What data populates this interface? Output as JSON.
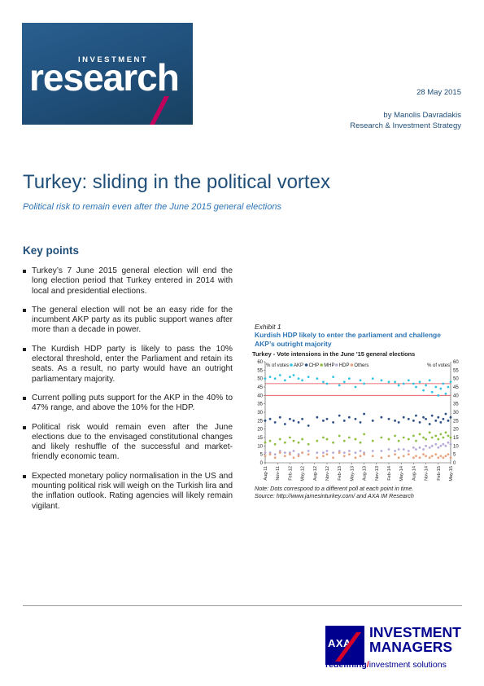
{
  "header": {
    "logo_small": "INVESTMENT",
    "logo_big": "research",
    "date": "28 May 2015",
    "author": "by Manolis Davradakis",
    "department": "Research & Investment Strategy"
  },
  "title": "Turkey: sliding in the political vortex",
  "subtitle": "Political risk to remain even after the June 2015 general elections",
  "key_points": {
    "heading": "Key points",
    "items": [
      "Turkey’s 7 June 2015 general election will end the long election period that Turkey entered in 2014 with local and presidential elections.",
      "The general election will not be an easy ride for the incumbent AKP party as its public support wanes after more than a decade in power.",
      "The Kurdish HDP party is likely to pass the 10% electoral threshold, enter the Parliament and retain its seats. As a result, no party would have an outright parliamentary majority.",
      "Current polling puts support for the AKP in the 40% to 47% range, and above the 10% for the HDP.",
      "Political risk would remain even after the June elections due to the envisaged constitutional changes and likely reshuffle of the successful and market-friendly economic team.",
      "Expected monetary policy normalisation in the US and mounting political risk will weigh on the Turkish lira and the inflation outlook. Rating agencies will likely remain vigilant."
    ]
  },
  "exhibit": {
    "label": "Exhibit 1",
    "title": "Kurdish HDP likely to enter the parliament and challenge AKP’s outright majority",
    "note": "Note: Dots correspond to a different poll at each point in time.",
    "source": "Source: http://www.jamesinturkey.com/ and AXA IM Research"
  },
  "chart_data": {
    "type": "scatter",
    "title": "Turkey - Vote intensions in the June '15  general elections",
    "ylabel_left": "% of votes",
    "ylabel_right": "% of votes",
    "ylim": [
      0,
      60
    ],
    "yticks": [
      0,
      5,
      10,
      15,
      20,
      25,
      30,
      35,
      40,
      45,
      50,
      55,
      60
    ],
    "x_ticks": [
      "Aug-11",
      "Nov-11",
      "Feb-12",
      "May-12",
      "Aug-12",
      "Nov-12",
      "Feb-13",
      "May-13",
      "Aug-13",
      "Nov-13",
      "Feb-14",
      "May-14",
      "Aug-14",
      "Nov-14",
      "Feb-15",
      "May-15"
    ],
    "reference_lines": [
      40,
      47
    ],
    "reference_color": "#e8474a",
    "series": [
      {
        "name": "AKP",
        "color": "#33c3e3",
        "x": [
          0,
          0.4,
          0.8,
          1.2,
          1.6,
          2.0,
          2.3,
          2.7,
          3.0,
          3.5,
          4.2,
          4.7,
          5.0,
          5.5,
          6.0,
          6.4,
          6.8,
          7.3,
          7.7,
          8.0,
          8.7,
          9.4,
          10.0,
          10.5,
          10.8,
          11.2,
          11.6,
          12.0,
          12.2,
          12.5,
          12.8,
          13.0,
          13.3,
          13.5,
          13.8,
          14.0,
          14.2,
          14.4,
          14.6,
          14.8,
          15.0
        ],
        "values": [
          50,
          51,
          50,
          52,
          49,
          51,
          52,
          50,
          49,
          51,
          50,
          48,
          47,
          51,
          46,
          48,
          50,
          45,
          49,
          47,
          50,
          49,
          48,
          48,
          46,
          47,
          49,
          47,
          45,
          48,
          43,
          46,
          49,
          42,
          45,
          40,
          44,
          47,
          41,
          45,
          48
        ]
      },
      {
        "name": "CHP",
        "color": "#2d4f86",
        "x": [
          0,
          0.4,
          0.8,
          1.2,
          1.6,
          2.0,
          2.3,
          2.7,
          3.0,
          3.5,
          4.2,
          4.7,
          5.0,
          5.5,
          6.0,
          6.4,
          6.8,
          7.3,
          7.7,
          8.0,
          8.7,
          9.4,
          10.0,
          10.5,
          10.8,
          11.2,
          11.6,
          12.0,
          12.2,
          12.5,
          12.8,
          13.0,
          13.3,
          13.5,
          13.8,
          14.0,
          14.2,
          14.4,
          14.6,
          14.8,
          15.0
        ],
        "values": [
          25,
          26,
          24,
          27,
          23,
          26,
          25,
          24,
          26,
          22,
          27,
          25,
          26,
          24,
          28,
          25,
          27,
          26,
          24,
          29,
          25,
          27,
          26,
          25,
          24,
          27,
          26,
          25,
          28,
          24,
          27,
          26,
          23,
          28,
          25,
          27,
          24,
          26,
          29,
          25,
          27
        ]
      },
      {
        "name": "MHP",
        "color": "#8fbf3f",
        "x": [
          0,
          0.4,
          0.8,
          1.2,
          1.6,
          2.0,
          2.3,
          2.7,
          3.0,
          3.5,
          4.2,
          4.7,
          5.0,
          5.5,
          6.0,
          6.4,
          6.8,
          7.3,
          7.7,
          8.0,
          8.7,
          9.4,
          10.0,
          10.5,
          10.8,
          11.2,
          11.6,
          12.0,
          12.2,
          12.5,
          12.8,
          13.0,
          13.3,
          13.5,
          13.8,
          14.0,
          14.2,
          14.4,
          14.6,
          14.8,
          15.0
        ],
        "values": [
          12,
          13,
          11,
          14,
          12,
          15,
          13,
          12,
          14,
          11,
          13,
          15,
          14,
          12,
          16,
          13,
          15,
          14,
          12,
          17,
          13,
          15,
          14,
          16,
          13,
          15,
          14,
          16,
          13,
          17,
          15,
          14,
          18,
          15,
          16,
          14,
          17,
          15,
          18,
          16,
          15
        ]
      },
      {
        "name": "HDP",
        "color": "#b7a8d6",
        "x": [
          0,
          0.4,
          0.8,
          1.2,
          1.6,
          2.0,
          2.3,
          2.7,
          3.0,
          3.5,
          4.2,
          4.7,
          5.0,
          5.5,
          6.0,
          6.4,
          6.8,
          7.3,
          7.7,
          8.0,
          8.7,
          9.4,
          10.0,
          10.5,
          10.8,
          11.2,
          11.6,
          12.0,
          12.2,
          12.5,
          12.8,
          13.0,
          13.3,
          13.5,
          13.8,
          14.0,
          14.2,
          14.4,
          14.6,
          14.8,
          15.0
        ],
        "values": [
          6,
          6,
          5,
          7,
          6,
          6,
          7,
          5,
          6,
          7,
          6,
          6,
          7,
          6,
          7,
          6,
          7,
          6,
          7,
          6,
          7,
          7,
          8,
          7,
          8,
          8,
          7,
          9,
          8,
          9,
          8,
          10,
          9,
          10,
          11,
          9,
          10,
          11,
          10,
          12,
          11
        ]
      },
      {
        "name": "Others",
        "color": "#e8a37c",
        "x": [
          0,
          0.4,
          0.8,
          1.2,
          1.6,
          2.0,
          2.3,
          2.7,
          3.0,
          3.5,
          4.2,
          4.7,
          5.0,
          5.5,
          6.0,
          6.4,
          6.8,
          7.3,
          7.7,
          8.0,
          8.7,
          9.4,
          10.0,
          10.5,
          10.8,
          11.2,
          11.6,
          12.0,
          12.2,
          12.5,
          12.8,
          13.0,
          13.3,
          13.5,
          13.8,
          14.0,
          14.2,
          14.4,
          14.6,
          14.8,
          15.0
        ],
        "values": [
          4,
          5,
          3,
          6,
          4,
          5,
          3,
          4,
          6,
          5,
          3,
          4,
          5,
          3,
          6,
          4,
          5,
          3,
          4,
          5,
          4,
          3,
          4,
          5,
          3,
          4,
          5,
          3,
          4,
          3,
          5,
          4,
          3,
          4,
          5,
          3,
          4,
          3,
          4,
          5,
          3
        ]
      }
    ]
  },
  "footer": {
    "axa": "AXA",
    "im_line1": "INVESTMENT",
    "im_line2": "MANAGERS",
    "tagline_bold": "redefining",
    "tagline_slash": "/",
    "tagline_rest": "investment solutions"
  }
}
